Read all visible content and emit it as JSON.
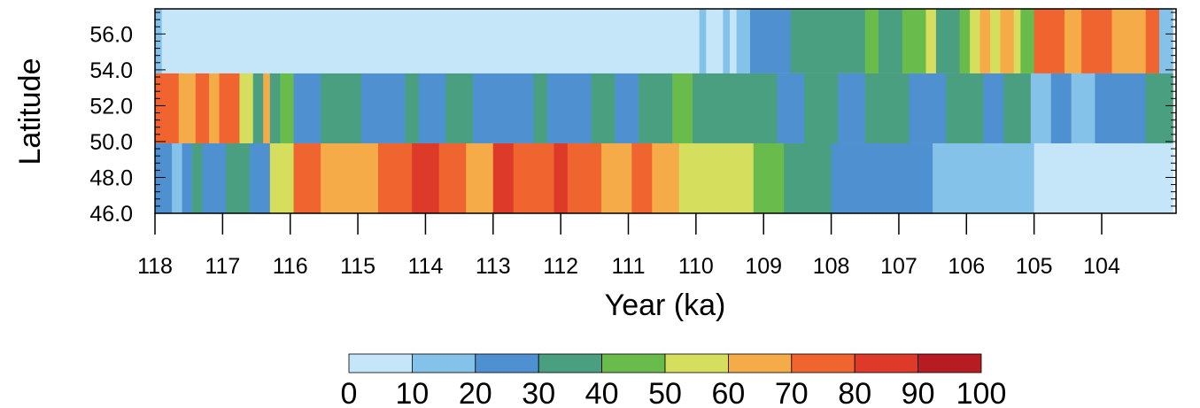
{
  "chart_data": {
    "type": "heatmap",
    "title": "",
    "xlabel": "Year (ka)",
    "ylabel": "Latitude",
    "xlim": [
      118.0,
      102.9
    ],
    "ylim": [
      46.0,
      57.4
    ],
    "x_ticks": [
      "118",
      "117",
      "116",
      "115",
      "114",
      "113",
      "112",
      "111",
      "110",
      "109",
      "108",
      "107",
      "106",
      "105",
      "104"
    ],
    "x_tick_values": [
      118,
      117,
      116,
      115,
      114,
      113,
      112,
      111,
      110,
      109,
      108,
      107,
      106,
      105,
      104
    ],
    "y_ticks": [
      "46.0",
      "48.0",
      "50.0",
      "52.0",
      "54.0",
      "56.0"
    ],
    "y_tick_values": [
      46.0,
      48.0,
      50.0,
      52.0,
      54.0,
      56.0
    ],
    "colorbar": {
      "levels": [
        "0",
        "10",
        "20",
        "30",
        "40",
        "50",
        "60",
        "70",
        "80",
        "90",
        "100"
      ],
      "colors": [
        "#c4e6f8",
        "#85c2ea",
        "#4f91d0",
        "#4a9f80",
        "#69bc4c",
        "#d5de5d",
        "#f6ab49",
        "#ef642f",
        "#dd3a29",
        "#b71c23"
      ]
    },
    "rows": [
      {
        "lat_range": [
          53.8,
          57.4
        ],
        "segments": [
          {
            "x0": 118.0,
            "x1": 117.9,
            "value": 15
          },
          {
            "x0": 117.9,
            "x1": 109.95,
            "value": 5
          },
          {
            "x0": 109.95,
            "x1": 109.85,
            "value": 15
          },
          {
            "x0": 109.85,
            "x1": 109.6,
            "value": 5
          },
          {
            "x0": 109.6,
            "x1": 109.5,
            "value": 15
          },
          {
            "x0": 109.5,
            "x1": 109.4,
            "value": 5
          },
          {
            "x0": 109.4,
            "x1": 109.2,
            "value": 15
          },
          {
            "x0": 109.2,
            "x1": 108.6,
            "value": 25
          },
          {
            "x0": 108.6,
            "x1": 108.3,
            "value": 35
          },
          {
            "x0": 108.3,
            "x1": 107.5,
            "value": 35
          },
          {
            "x0": 107.5,
            "x1": 107.3,
            "value": 45
          },
          {
            "x0": 107.3,
            "x1": 106.95,
            "value": 35
          },
          {
            "x0": 106.95,
            "x1": 106.6,
            "value": 45
          },
          {
            "x0": 106.6,
            "x1": 106.45,
            "value": 55
          },
          {
            "x0": 106.45,
            "x1": 106.1,
            "value": 35
          },
          {
            "x0": 106.1,
            "x1": 105.95,
            "value": 45
          },
          {
            "x0": 105.95,
            "x1": 105.8,
            "value": 55
          },
          {
            "x0": 105.8,
            "x1": 105.65,
            "value": 65
          },
          {
            "x0": 105.65,
            "x1": 105.5,
            "value": 55
          },
          {
            "x0": 105.5,
            "x1": 105.3,
            "value": 65
          },
          {
            "x0": 105.3,
            "x1": 105.2,
            "value": 55
          },
          {
            "x0": 105.2,
            "x1": 105.0,
            "value": 45
          },
          {
            "x0": 105.0,
            "x1": 104.55,
            "value": 75
          },
          {
            "x0": 104.55,
            "x1": 104.3,
            "value": 65
          },
          {
            "x0": 104.3,
            "x1": 103.85,
            "value": 75
          },
          {
            "x0": 103.85,
            "x1": 103.35,
            "value": 65
          },
          {
            "x0": 103.35,
            "x1": 103.15,
            "value": 75
          },
          {
            "x0": 103.15,
            "x1": 102.95,
            "value": 15
          }
        ]
      },
      {
        "lat_range": [
          49.9,
          53.8
        ],
        "segments": [
          {
            "x0": 118.0,
            "x1": 117.65,
            "value": 75
          },
          {
            "x0": 117.65,
            "x1": 117.4,
            "value": 65
          },
          {
            "x0": 117.4,
            "x1": 117.2,
            "value": 75
          },
          {
            "x0": 117.2,
            "x1": 117.05,
            "value": 65
          },
          {
            "x0": 117.05,
            "x1": 116.75,
            "value": 75
          },
          {
            "x0": 116.75,
            "x1": 116.55,
            "value": 55
          },
          {
            "x0": 116.55,
            "x1": 116.4,
            "value": 35
          },
          {
            "x0": 116.4,
            "x1": 116.3,
            "value": 65
          },
          {
            "x0": 116.3,
            "x1": 116.15,
            "value": 35
          },
          {
            "x0": 116.15,
            "x1": 115.95,
            "value": 45
          },
          {
            "x0": 115.95,
            "x1": 115.55,
            "value": 25
          },
          {
            "x0": 115.55,
            "x1": 114.95,
            "value": 35
          },
          {
            "x0": 114.95,
            "x1": 114.3,
            "value": 25
          },
          {
            "x0": 114.3,
            "x1": 114.1,
            "value": 35
          },
          {
            "x0": 114.1,
            "x1": 113.7,
            "value": 25
          },
          {
            "x0": 113.7,
            "x1": 113.3,
            "value": 35
          },
          {
            "x0": 113.3,
            "x1": 112.4,
            "value": 25
          },
          {
            "x0": 112.4,
            "x1": 112.2,
            "value": 35
          },
          {
            "x0": 112.2,
            "x1": 111.55,
            "value": 25
          },
          {
            "x0": 111.55,
            "x1": 111.2,
            "value": 35
          },
          {
            "x0": 111.2,
            "x1": 110.85,
            "value": 25
          },
          {
            "x0": 110.85,
            "x1": 110.35,
            "value": 35
          },
          {
            "x0": 110.35,
            "x1": 110.05,
            "value": 45
          },
          {
            "x0": 110.05,
            "x1": 109.25,
            "value": 35
          },
          {
            "x0": 109.25,
            "x1": 108.8,
            "value": 35
          },
          {
            "x0": 108.8,
            "x1": 108.4,
            "value": 25
          },
          {
            "x0": 108.4,
            "x1": 107.9,
            "value": 35
          },
          {
            "x0": 107.9,
            "x1": 107.5,
            "value": 25
          },
          {
            "x0": 107.5,
            "x1": 106.85,
            "value": 35
          },
          {
            "x0": 106.85,
            "x1": 106.3,
            "value": 25
          },
          {
            "x0": 106.3,
            "x1": 105.75,
            "value": 35
          },
          {
            "x0": 105.75,
            "x1": 105.45,
            "value": 25
          },
          {
            "x0": 105.45,
            "x1": 105.05,
            "value": 35
          },
          {
            "x0": 105.05,
            "x1": 104.75,
            "value": 15
          },
          {
            "x0": 104.75,
            "x1": 104.45,
            "value": 25
          },
          {
            "x0": 104.45,
            "x1": 104.1,
            "value": 15
          },
          {
            "x0": 104.1,
            "x1": 103.35,
            "value": 25
          },
          {
            "x0": 103.35,
            "x1": 102.95,
            "value": 35
          }
        ]
      },
      {
        "lat_range": [
          46.0,
          49.9
        ],
        "segments": [
          {
            "x0": 118.0,
            "x1": 117.75,
            "value": 25
          },
          {
            "x0": 117.75,
            "x1": 117.6,
            "value": 15
          },
          {
            "x0": 117.6,
            "x1": 117.45,
            "value": 25
          },
          {
            "x0": 117.45,
            "x1": 117.3,
            "value": 35
          },
          {
            "x0": 117.3,
            "x1": 116.95,
            "value": 25
          },
          {
            "x0": 116.95,
            "x1": 116.6,
            "value": 35
          },
          {
            "x0": 116.6,
            "x1": 116.3,
            "value": 25
          },
          {
            "x0": 116.3,
            "x1": 115.95,
            "value": 55
          },
          {
            "x0": 115.95,
            "x1": 115.55,
            "value": 75
          },
          {
            "x0": 115.55,
            "x1": 114.7,
            "value": 65
          },
          {
            "x0": 114.7,
            "x1": 114.2,
            "value": 75
          },
          {
            "x0": 114.2,
            "x1": 113.8,
            "value": 85
          },
          {
            "x0": 113.8,
            "x1": 113.4,
            "value": 75
          },
          {
            "x0": 113.4,
            "x1": 113.0,
            "value": 65
          },
          {
            "x0": 113.0,
            "x1": 112.7,
            "value": 85
          },
          {
            "x0": 112.7,
            "x1": 112.1,
            "value": 75
          },
          {
            "x0": 112.1,
            "x1": 111.9,
            "value": 85
          },
          {
            "x0": 111.9,
            "x1": 111.4,
            "value": 75
          },
          {
            "x0": 111.4,
            "x1": 110.95,
            "value": 65
          },
          {
            "x0": 110.95,
            "x1": 110.65,
            "value": 75
          },
          {
            "x0": 110.65,
            "x1": 110.25,
            "value": 65
          },
          {
            "x0": 110.25,
            "x1": 109.15,
            "value": 55
          },
          {
            "x0": 109.15,
            "x1": 108.7,
            "value": 45
          },
          {
            "x0": 108.7,
            "x1": 108.4,
            "value": 35
          },
          {
            "x0": 108.4,
            "x1": 108.0,
            "value": 35
          },
          {
            "x0": 108.0,
            "x1": 107.6,
            "value": 25
          },
          {
            "x0": 107.6,
            "x1": 107.3,
            "value": 25
          },
          {
            "x0": 107.3,
            "x1": 106.5,
            "value": 25
          },
          {
            "x0": 106.5,
            "x1": 106.0,
            "value": 15
          },
          {
            "x0": 106.0,
            "x1": 105.7,
            "value": 15
          },
          {
            "x0": 105.7,
            "x1": 105.0,
            "value": 15
          },
          {
            "x0": 105.0,
            "x1": 104.6,
            "value": 5
          },
          {
            "x0": 104.6,
            "x1": 103.8,
            "value": 5
          },
          {
            "x0": 103.8,
            "x1": 103.3,
            "value": 5
          },
          {
            "x0": 103.3,
            "x1": 102.95,
            "value": 5
          }
        ]
      }
    ]
  }
}
